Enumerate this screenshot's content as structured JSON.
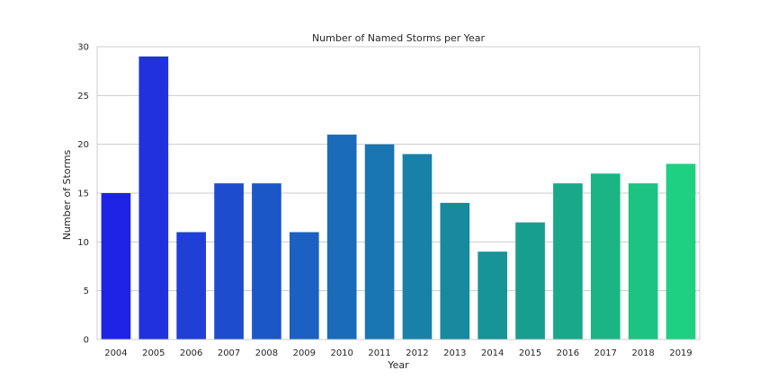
{
  "chart_data": {
    "type": "bar",
    "title": "Number of Named Storms per Year",
    "xlabel": "Year",
    "ylabel": "Number of Storms",
    "categories": [
      "2004",
      "2005",
      "2006",
      "2007",
      "2008",
      "2009",
      "2010",
      "2011",
      "2012",
      "2013",
      "2014",
      "2015",
      "2016",
      "2017",
      "2018",
      "2019"
    ],
    "values": [
      15,
      29,
      11,
      16,
      16,
      11,
      21,
      20,
      19,
      14,
      9,
      12,
      16,
      17,
      16,
      18
    ],
    "ylim": [
      0,
      30
    ],
    "yticks": [
      0,
      5,
      10,
      15,
      20,
      25,
      30
    ],
    "grid": "horizontal",
    "colors": [
      "#1e23e6",
      "#1f32de",
      "#1f3fd6",
      "#1d4ccf",
      "#1c57c8",
      "#1b61c1",
      "#1a6cba",
      "#1a76b2",
      "#1881a9",
      "#178a9f",
      "#169496",
      "#189e8f",
      "#19a98a",
      "#1bb585",
      "#1cc383",
      "#1dd082"
    ]
  }
}
